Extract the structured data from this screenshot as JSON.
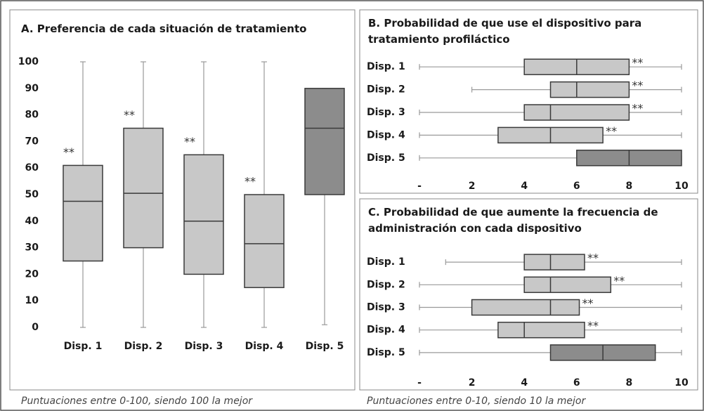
{
  "chart_data": [
    {
      "type": "box",
      "orient": "vertical",
      "title": "A. Preferencia de cada situación de tratamiento",
      "categories": [
        "Disp. 1",
        "Disp. 2",
        "Disp. 3",
        "Disp. 4",
        "Disp. 5"
      ],
      "boxes": [
        {
          "min": 0,
          "q1": 25,
          "median": 47.5,
          "q3": 61,
          "max": 100,
          "color": "#c8c8c8"
        },
        {
          "min": 0,
          "q1": 30,
          "median": 50.5,
          "q3": 75,
          "max": 100,
          "color": "#c8c8c8"
        },
        {
          "min": 0,
          "q1": 20,
          "median": 40,
          "q3": 65,
          "max": 100,
          "color": "#c8c8c8"
        },
        {
          "min": 0,
          "q1": 15,
          "median": 31.5,
          "q3": 50,
          "max": 100,
          "color": "#c8c8c8"
        },
        {
          "min": 1,
          "q1": 50,
          "median": 75,
          "q3": 90,
          "max": 90,
          "color": "#8c8c8c"
        }
      ],
      "annotations": [
        "**",
        "**",
        "**",
        "**",
        null
      ],
      "ylim": [
        0,
        100
      ],
      "yticks": [
        0,
        10,
        20,
        30,
        40,
        50,
        60,
        70,
        80,
        90,
        100
      ],
      "grid": false
    },
    {
      "type": "box",
      "orient": "horizontal",
      "title": "B. Probabilidad de que use el dispositivo para tratamiento profiláctico",
      "categories": [
        "Disp. 1",
        "Disp. 2",
        "Disp. 3",
        "Disp. 4",
        "Disp. 5"
      ],
      "boxes": [
        {
          "min": 0,
          "q1": 4,
          "median": 6,
          "q3": 8,
          "max": 10,
          "color": "#c8c8c8"
        },
        {
          "min": 2,
          "q1": 5,
          "median": 6,
          "q3": 8,
          "max": 10,
          "color": "#c8c8c8"
        },
        {
          "min": 0,
          "q1": 4,
          "median": 5,
          "q3": 8,
          "max": 10,
          "color": "#c8c8c8"
        },
        {
          "min": 0,
          "q1": 3,
          "median": 5,
          "q3": 7,
          "max": 10,
          "color": "#c8c8c8"
        },
        {
          "min": 0,
          "q1": 6,
          "median": 8,
          "q3": 10,
          "max": 10,
          "color": "#8c8c8c"
        }
      ],
      "annotations": [
        "**",
        "**",
        "**",
        "**",
        null
      ],
      "xlim": [
        0,
        10
      ],
      "xticks": [
        {
          "value": 0,
          "label": "-"
        },
        2,
        4,
        6,
        8,
        10
      ],
      "grid": false
    },
    {
      "type": "box",
      "orient": "horizontal",
      "title": "C. Probabilidad de que aumente la frecuencia de administración con cada dispositivo",
      "categories": [
        "Disp. 1",
        "Disp. 2",
        "Disp. 3",
        "Disp. 4",
        "Disp. 5"
      ],
      "boxes": [
        {
          "min": 1,
          "q1": 4,
          "median": 5,
          "q3": 6.3,
          "max": 10,
          "color": "#c8c8c8"
        },
        {
          "min": 0,
          "q1": 4,
          "median": 5,
          "q3": 7.3,
          "max": 10,
          "color": "#c8c8c8"
        },
        {
          "min": 0,
          "q1": 2,
          "median": 5,
          "q3": 6.1,
          "max": 10,
          "color": "#c8c8c8"
        },
        {
          "min": 0,
          "q1": 3,
          "median": 4,
          "q3": 6.3,
          "max": 10,
          "color": "#c8c8c8"
        },
        {
          "min": 0,
          "q1": 5,
          "median": 7,
          "q3": 9,
          "max": 10,
          "color": "#8c8c8c"
        }
      ],
      "annotations": [
        "**",
        "**",
        "**",
        "**",
        null
      ],
      "xlim": [
        0,
        10
      ],
      "xticks": [
        {
          "value": 0,
          "label": "-"
        },
        2,
        4,
        6,
        8,
        10
      ],
      "grid": false
    }
  ],
  "notes": [
    "Puntuaciones entre 0-100, siendo 100 la mejor",
    "Puntuaciones entre 0-10, siendo 10 la mejor"
  ]
}
